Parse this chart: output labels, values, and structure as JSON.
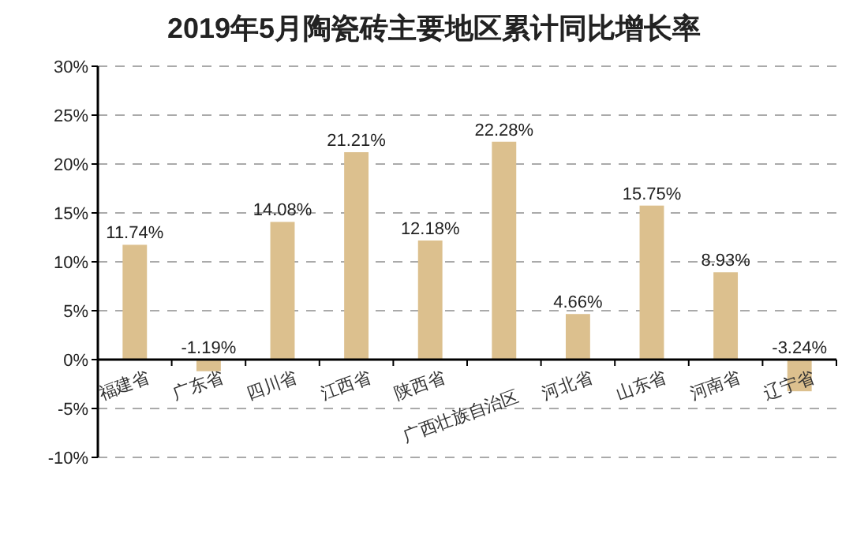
{
  "chart_data": {
    "type": "bar",
    "title": "2019年5月陶瓷砖主要地区累计同比增长率",
    "categories": [
      "福建省",
      "广东省",
      "四川省",
      "江西省",
      "陕西省",
      "广西壮族自治区",
      "河北省",
      "山东省",
      "河南省",
      "辽宁省"
    ],
    "values": [
      11.74,
      -1.19,
      14.08,
      21.21,
      12.18,
      22.28,
      4.66,
      15.75,
      8.93,
      -3.24
    ],
    "value_labels": [
      "11.74%",
      "-1.19%",
      "14.08%",
      "21.21%",
      "12.18%",
      "22.28%",
      "4.66%",
      "15.75%",
      "8.93%",
      "-3.24%"
    ],
    "color": "#dcc08e",
    "ylim": [
      -10,
      30
    ],
    "yticks": [
      {
        "value": -10,
        "label": "-10%"
      },
      {
        "value": -5,
        "label": "-5%"
      },
      {
        "value": 0,
        "label": "0%"
      },
      {
        "value": 5,
        "label": "5%"
      },
      {
        "value": 10,
        "label": "10%"
      },
      {
        "value": 15,
        "label": "15%"
      },
      {
        "value": 20,
        "label": "20%"
      },
      {
        "value": 25,
        "label": "25%"
      },
      {
        "value": 30,
        "label": "30%"
      }
    ],
    "grid": "y"
  }
}
